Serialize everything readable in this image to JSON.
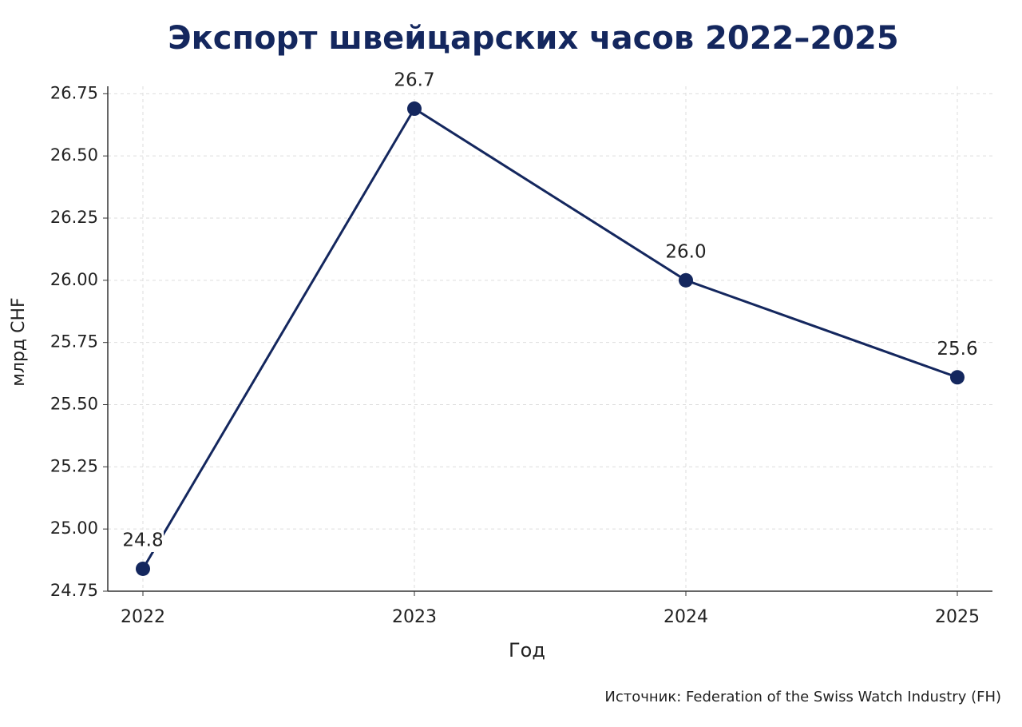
{
  "chart_data": {
    "type": "line",
    "title": "Экспорт швейцарских часов 2022–2025",
    "x_label": "Год",
    "y_label": "млрд CHF",
    "source": "Источник: Federation of the Swiss Watch Industry (FH)",
    "categories": [
      "2022",
      "2023",
      "2024",
      "2025"
    ],
    "series": [
      {
        "name": "Экспорт",
        "color": "#14275e",
        "values": [
          24.84,
          26.69,
          26.0,
          25.61
        ],
        "value_labels": [
          "24.8",
          "26.7",
          "26.0",
          "25.6"
        ]
      }
    ],
    "ylim": [
      24.75,
      26.78
    ],
    "yticks": [
      24.75,
      {
        "value": 25,
        "label": "25.00"
      },
      25.25,
      {
        "value": 25.5,
        "label": "25.50"
      },
      25.75,
      {
        "value": 26,
        "label": "26.00"
      },
      26.25,
      {
        "value": 26.5,
        "label": "26.50"
      },
      26.75
    ],
    "grid": true
  }
}
